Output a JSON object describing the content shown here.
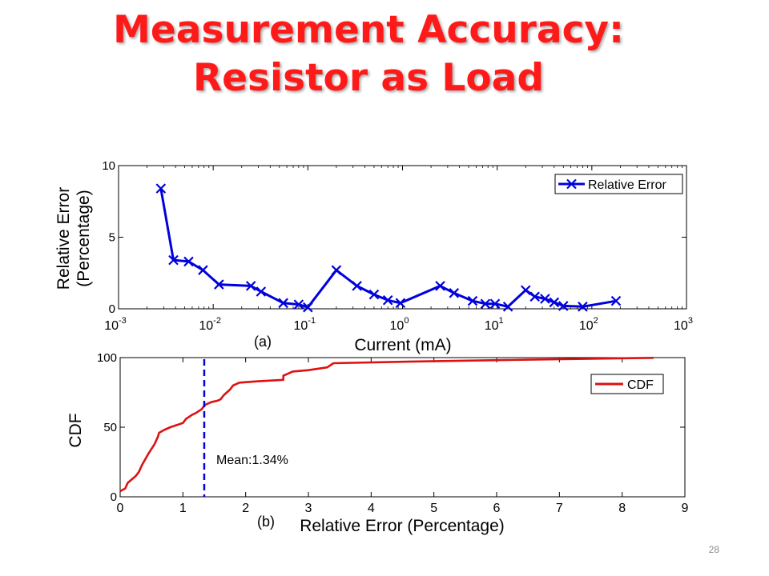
{
  "slide": {
    "title_line1": "Measurement Accuracy:",
    "title_line2": "Resistor as Load",
    "page_number": "28"
  },
  "colors": {
    "title": "#ff1a1a",
    "series_a": "#0000dd",
    "series_b": "#dd1111"
  },
  "chart_data": [
    {
      "type": "line",
      "panel_label": "(a)",
      "xlabel": "Current (mA)",
      "ylabel": "Relative Error",
      "ylabel2": "(Percentage)",
      "x_scale": "log",
      "xlim": [
        0.001,
        1000
      ],
      "ylim": [
        0,
        10
      ],
      "x_ticks": [
        {
          "value": 0.001,
          "base": "10",
          "exp": "-3"
        },
        {
          "value": 0.01,
          "base": "10",
          "exp": "-2"
        },
        {
          "value": 0.1,
          "base": "10",
          "exp": "-1"
        },
        {
          "value": 1,
          "base": "10",
          "exp": "0"
        },
        {
          "value": 10,
          "base": "10",
          "exp": "1"
        },
        {
          "value": 100,
          "base": "10",
          "exp": "2"
        },
        {
          "value": 1000,
          "base": "10",
          "exp": "3"
        }
      ],
      "y_ticks": [
        0,
        5,
        10
      ],
      "legend_position": "top-right",
      "series": [
        {
          "name": "Relative Error",
          "marker": "x",
          "points": [
            [
              0.0028,
              8.4
            ],
            [
              0.0038,
              3.4
            ],
            [
              0.0055,
              3.3
            ],
            [
              0.0078,
              2.7
            ],
            [
              0.0115,
              1.7
            ],
            [
              0.025,
              1.6
            ],
            [
              0.032,
              1.2
            ],
            [
              0.055,
              0.4
            ],
            [
              0.08,
              0.3
            ],
            [
              0.1,
              0.1
            ],
            [
              0.2,
              2.7
            ],
            [
              0.33,
              1.6
            ],
            [
              0.5,
              1.0
            ],
            [
              0.7,
              0.6
            ],
            [
              0.95,
              0.4
            ],
            [
              2.5,
              1.6
            ],
            [
              3.5,
              1.1
            ],
            [
              5.5,
              0.55
            ],
            [
              7.5,
              0.35
            ],
            [
              9.5,
              0.35
            ],
            [
              13,
              0.15
            ],
            [
              20,
              1.3
            ],
            [
              25,
              0.85
            ],
            [
              32,
              0.7
            ],
            [
              40,
              0.45
            ],
            [
              50,
              0.2
            ],
            [
              80,
              0.15
            ],
            [
              180,
              0.55
            ]
          ]
        }
      ]
    },
    {
      "type": "line",
      "panel_label": "(b)",
      "xlabel": "Relative Error (Percentage)",
      "ylabel": "CDF",
      "xlim": [
        0,
        9
      ],
      "ylim": [
        0,
        100
      ],
      "x_ticks": [
        0,
        1,
        2,
        3,
        4,
        5,
        6,
        7,
        8,
        9
      ],
      "y_ticks": [
        0,
        50,
        100
      ],
      "legend_position": "top-right",
      "mean_value": 1.34,
      "mean_label": "Mean:1.34%",
      "series": [
        {
          "name": "CDF",
          "points": [
            [
              0.0,
              4
            ],
            [
              0.08,
              6
            ],
            [
              0.12,
              10
            ],
            [
              0.25,
              15
            ],
            [
              0.3,
              18
            ],
            [
              0.35,
              23
            ],
            [
              0.45,
              31
            ],
            [
              0.55,
              38
            ],
            [
              0.6,
              43
            ],
            [
              0.62,
              46
            ],
            [
              0.7,
              48
            ],
            [
              0.8,
              50
            ],
            [
              0.9,
              51.5
            ],
            [
              1.0,
              53
            ],
            [
              1.05,
              56
            ],
            [
              1.15,
              59
            ],
            [
              1.2,
              60
            ],
            [
              1.3,
              63
            ],
            [
              1.35,
              66
            ],
            [
              1.45,
              68
            ],
            [
              1.55,
              69
            ],
            [
              1.6,
              70
            ],
            [
              1.65,
              73
            ],
            [
              1.75,
              77
            ],
            [
              1.8,
              80
            ],
            [
              1.9,
              82
            ],
            [
              2.2,
              83
            ],
            [
              2.6,
              84
            ],
            [
              2.6,
              87
            ],
            [
              2.65,
              88
            ],
            [
              2.75,
              90
            ],
            [
              3.0,
              91
            ],
            [
              3.3,
              93
            ],
            [
              3.4,
              96
            ],
            [
              4.5,
              97
            ],
            [
              6.5,
              98.5
            ],
            [
              7.5,
              99.2
            ],
            [
              8.5,
              99.8
            ]
          ]
        }
      ]
    }
  ]
}
